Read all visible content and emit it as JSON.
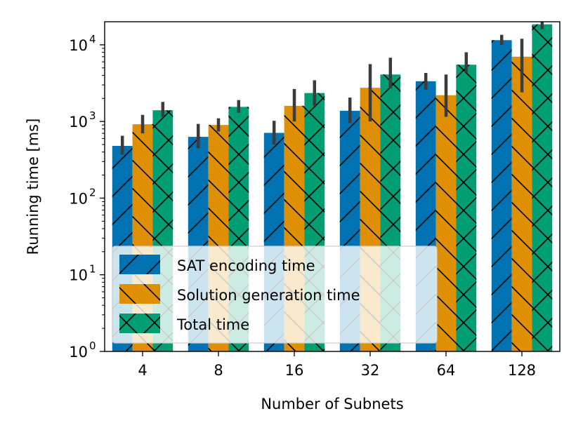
{
  "chart_data": {
    "type": "bar",
    "xlabel": "Number of Subnets",
    "ylabel": "Running time [ms]",
    "yscale": "log",
    "ylim": [
      1,
      20000
    ],
    "categories": [
      "4",
      "8",
      "16",
      "32",
      "64",
      "128"
    ],
    "yticks": [
      {
        "value": 1,
        "base": "10",
        "exp": "0"
      },
      {
        "value": 10,
        "base": "10",
        "exp": "1"
      },
      {
        "value": 100,
        "base": "10",
        "exp": "2"
      },
      {
        "value": 1000,
        "base": "10",
        "exp": "3"
      },
      {
        "value": 10000,
        "base": "10",
        "exp": "4"
      }
    ],
    "series": [
      {
        "name": "SAT encoding time",
        "color": "#0173b2",
        "hatch": "/",
        "values": [
          480,
          630,
          710,
          1380,
          3350,
          11500
        ],
        "error_low": [
          370,
          450,
          500,
          950,
          2600,
          10000
        ],
        "error_high": [
          650,
          930,
          1020,
          2050,
          4300,
          13500
        ]
      },
      {
        "name": "Solution generation time",
        "color": "#de8f05",
        "hatch": "\\",
        "values": [
          920,
          900,
          1600,
          2750,
          2200,
          7000
        ],
        "error_low": [
          700,
          740,
          1000,
          1000,
          1150,
          2400
        ],
        "error_high": [
          1220,
          1100,
          2650,
          5600,
          4100,
          12000
        ]
      },
      {
        "name": "Total time",
        "color": "#029e73",
        "hatch": "x",
        "values": [
          1400,
          1550,
          2350,
          4100,
          5500,
          18500
        ],
        "error_low": [
          1150,
          1300,
          1600,
          2700,
          4350,
          16000
        ],
        "error_high": [
          1800,
          1900,
          3450,
          6800,
          8000,
          24000
        ]
      }
    ],
    "legend": {
      "position": "lower-left"
    }
  }
}
